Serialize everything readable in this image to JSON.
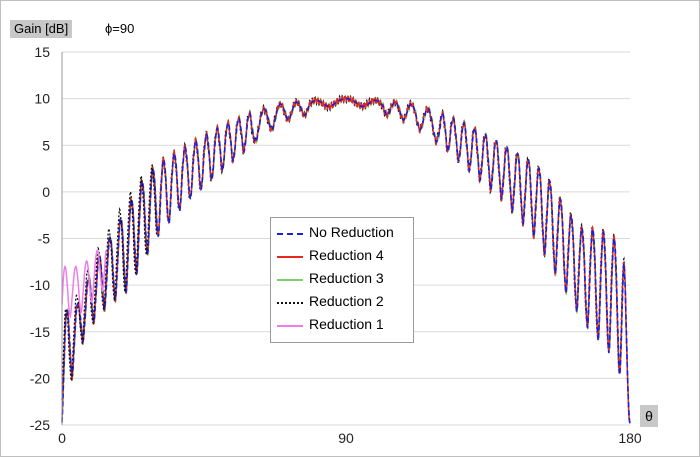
{
  "header": {
    "ylabel": "Gain [dB]",
    "subtitle": "ϕ=90"
  },
  "xaxis_label": "θ",
  "legend": {
    "items": [
      {
        "label": "No Reduction",
        "color": "#1f1fd6",
        "dash": "dashed"
      },
      {
        "label": "Reduction 4",
        "color": "#e8281c",
        "dash": "solid"
      },
      {
        "label": "Reduction 3",
        "color": "#7ccf6a",
        "dash": "solid"
      },
      {
        "label": "Reduction 2",
        "color": "#111111",
        "dash": "dotted"
      },
      {
        "label": "Reduction 1",
        "color": "#f07de6",
        "dash": "solid"
      }
    ]
  },
  "chart_data": {
    "type": "line",
    "title": "",
    "xlabel": "θ",
    "ylabel": "Gain [dB]",
    "xlim": [
      0,
      180
    ],
    "ylim": [
      -25,
      15
    ],
    "x_ticks": [
      0,
      90,
      180
    ],
    "y_ticks": [
      15,
      10,
      5,
      0,
      -5,
      -10,
      -15,
      -20,
      -25
    ],
    "grid": "horizontal",
    "legend_position": "center",
    "series": [
      {
        "name": "No Reduction",
        "color": "#1f1fd6",
        "envelope_upper": [
          [
            0,
            -13
          ],
          [
            5,
            -12
          ],
          [
            10,
            -8
          ],
          [
            15,
            -5
          ],
          [
            20,
            -2
          ],
          [
            25,
            1
          ],
          [
            30,
            3
          ],
          [
            40,
            5
          ],
          [
            50,
            7
          ],
          [
            60,
            8.5
          ],
          [
            70,
            9.5
          ],
          [
            80,
            9.8
          ],
          [
            90,
            10
          ],
          [
            100,
            9.8
          ],
          [
            110,
            9.5
          ],
          [
            120,
            8.5
          ],
          [
            130,
            7
          ],
          [
            140,
            5
          ],
          [
            150,
            3
          ],
          [
            155,
            1
          ],
          [
            160,
            -2
          ],
          [
            165,
            -4
          ],
          [
            170,
            -4
          ],
          [
            175,
            -5
          ],
          [
            178,
            -6
          ],
          [
            180,
            -24
          ]
        ],
        "envelope_lower": [
          [
            0,
            -25
          ],
          [
            5,
            -17
          ],
          [
            10,
            -14
          ],
          [
            15,
            -12
          ],
          [
            20,
            -11
          ],
          [
            25,
            -8
          ],
          [
            30,
            -5
          ],
          [
            40,
            -1
          ],
          [
            50,
            2
          ],
          [
            60,
            5
          ],
          [
            70,
            7.5
          ],
          [
            80,
            8.5
          ],
          [
            90,
            9.8
          ],
          [
            100,
            8.5
          ],
          [
            110,
            7.5
          ],
          [
            120,
            5
          ],
          [
            130,
            2
          ],
          [
            140,
            -1
          ],
          [
            150,
            -5
          ],
          [
            155,
            -8
          ],
          [
            160,
            -11
          ],
          [
            165,
            -14
          ],
          [
            170,
            -16
          ],
          [
            175,
            -18
          ],
          [
            178,
            -21
          ],
          [
            180,
            -25
          ]
        ]
      },
      {
        "name": "Reduction 4",
        "color": "#e8281c"
      },
      {
        "name": "Reduction 3",
        "color": "#7ccf6a"
      },
      {
        "name": "Reduction 2",
        "color": "#111111",
        "envelope_upper": [
          [
            0,
            -13
          ],
          [
            5,
            -11
          ],
          [
            10,
            -7
          ],
          [
            15,
            -4
          ],
          [
            20,
            -1
          ],
          [
            25,
            1.5
          ],
          [
            30,
            3.2
          ]
        ]
      },
      {
        "name": "Reduction 1",
        "color": "#f07de6",
        "envelope_upper": [
          [
            0,
            -8
          ],
          [
            3,
            -8
          ],
          [
            6,
            -8
          ],
          [
            9,
            -7
          ],
          [
            12,
            -6
          ],
          [
            14,
            -5
          ]
        ]
      }
    ]
  }
}
